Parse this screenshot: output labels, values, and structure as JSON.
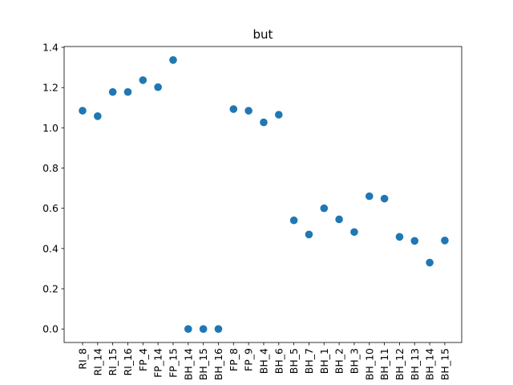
{
  "chart_data": {
    "type": "scatter",
    "title": "but",
    "xlabel": "",
    "ylabel": "",
    "categories": [
      "RI_8",
      "RI_14",
      "RI_15",
      "RI_16",
      "FP_4",
      "FP_14",
      "FP_15",
      "BH_14",
      "BH_15",
      "BH_16",
      "FP_8",
      "FP_9",
      "BH_4",
      "BH_6",
      "BH_5",
      "BH_7",
      "BH_1",
      "BH_2",
      "BH_3",
      "BH_10",
      "BH_11",
      "BH_12",
      "BH_13",
      "BH_14",
      "BH_15"
    ],
    "values": [
      1.085,
      1.058,
      1.178,
      1.178,
      1.237,
      1.202,
      1.337,
      0.0,
      0.0,
      0.0,
      1.093,
      1.085,
      1.027,
      1.065,
      0.54,
      0.47,
      0.6,
      0.545,
      0.482,
      0.66,
      0.648,
      0.458,
      0.438,
      0.33,
      0.44
    ],
    "yticks": [
      "0.0",
      "0.2",
      "0.4",
      "0.6",
      "0.8",
      "1.0",
      "1.2",
      "1.4"
    ],
    "ylim": [
      -0.067,
      1.404
    ],
    "grid": false,
    "marker_color": "#1f77b4"
  }
}
